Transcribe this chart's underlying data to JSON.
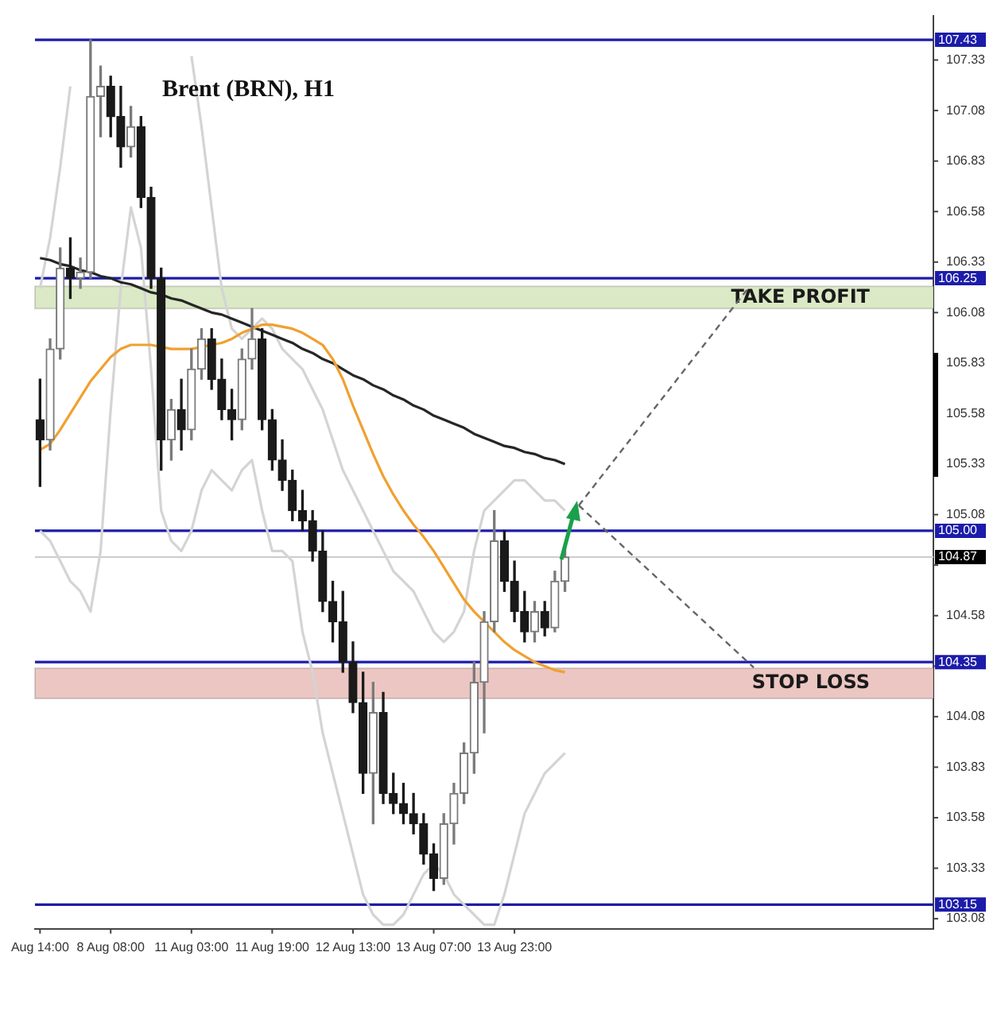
{
  "chart_data": {
    "type": "candlestick",
    "title": "Brent (BRN), H1",
    "colors": [
      "#1a1a1a",
      "#7a7a7a",
      "#7a7a7a",
      "#1a1a1a",
      "#7a7a7a",
      "#7a7a7a",
      "#7a7a7a",
      "#1a1a1a",
      "#1a1a1a",
      "#7a7a7a",
      "#1a1a1a",
      "#1a1a1a",
      "#1a1a1a",
      "#7a7a7a",
      "#1a1a1a",
      "#7a7a7a",
      "#7a7a7a",
      "#1a1a1a",
      "#1a1a1a",
      "#1a1a1a",
      "#7a7a7a",
      "#7a7a7a",
      "#1a1a1a",
      "#1a1a1a",
      "#1a1a1a",
      "#1a1a1a",
      "#1a1a1a",
      "#1a1a1a",
      "#1a1a1a",
      "#1a1a1a",
      "#1a1a1a",
      "#1a1a1a",
      "#1a1a1a",
      "#7a7a7a",
      "#1a1a1a",
      "#1a1a1a",
      "#1a1a1a",
      "#1a1a1a",
      "#1a1a1a",
      "#1a1a1a",
      "#7a7a7a",
      "#7a7a7a",
      "#7a7a7a",
      "#7a7a7a",
      "#7a7a7a",
      "#7a7a7a",
      "#1a1a1a",
      "#1a1a1a",
      "#1a1a1a",
      "#7a7a7a",
      "#1a1a1a",
      "#7a7a7a",
      "#7a7a7a",
      null,
      null,
      null,
      null,
      null,
      null,
      null,
      null,
      null,
      null,
      null,
      null,
      null,
      null,
      null,
      null,
      null,
      null,
      null,
      null,
      null,
      null,
      null,
      null,
      null,
      null,
      null,
      null,
      null,
      null,
      null,
      null,
      null,
      null,
      null,
      null
    ],
    "categories": [
      "Aug 14:00",
      null,
      null,
      null,
      null,
      null,
      null,
      "8 Aug 08:00",
      null,
      null,
      null,
      null,
      null,
      null,
      null,
      "11 Aug 03:00",
      null,
      null,
      null,
      null,
      null,
      null,
      null,
      "11 Aug 19:00",
      null,
      null,
      null,
      null,
      null,
      null,
      null,
      "12 Aug 13:00",
      null,
      null,
      null,
      null,
      null,
      null,
      null,
      "13 Aug 07:00",
      null,
      null,
      null,
      null,
      null,
      null,
      null,
      "13 Aug 23:00",
      null,
      null,
      null,
      null,
      null,
      null,
      null,
      null,
      null,
      null,
      null,
      null,
      null,
      null,
      null,
      null,
      null,
      null,
      null,
      null,
      null,
      null,
      null,
      null,
      null,
      null,
      null,
      null,
      null,
      null,
      null,
      null,
      null,
      null,
      null,
      null,
      null,
      null,
      null,
      null,
      null
    ],
    "ohlc": [
      [
        105.55,
        105.75,
        105.22,
        105.45
      ],
      [
        105.45,
        105.95,
        105.4,
        105.9
      ],
      [
        105.9,
        106.4,
        105.85,
        106.3
      ],
      [
        106.3,
        106.45,
        106.15,
        106.25
      ],
      [
        106.25,
        106.35,
        106.2,
        106.28
      ],
      [
        106.28,
        107.43,
        106.25,
        107.15
      ],
      [
        107.15,
        107.3,
        106.95,
        107.2
      ],
      [
        107.2,
        107.25,
        106.95,
        107.05
      ],
      [
        107.05,
        107.2,
        106.8,
        106.9
      ],
      [
        106.9,
        107.1,
        106.85,
        107.0
      ],
      [
        107.0,
        107.05,
        106.6,
        106.65
      ],
      [
        106.65,
        106.7,
        106.2,
        106.25
      ],
      [
        106.25,
        106.3,
        105.3,
        105.45
      ],
      [
        105.45,
        105.65,
        105.35,
        105.6
      ],
      [
        105.6,
        105.75,
        105.4,
        105.5
      ],
      [
        105.5,
        105.9,
        105.45,
        105.8
      ],
      [
        105.8,
        106.0,
        105.75,
        105.95
      ],
      [
        105.95,
        106.0,
        105.7,
        105.75
      ],
      [
        105.75,
        105.85,
        105.55,
        105.6
      ],
      [
        105.6,
        105.7,
        105.45,
        105.55
      ],
      [
        105.55,
        105.9,
        105.5,
        105.85
      ],
      [
        105.85,
        106.1,
        105.8,
        105.95
      ],
      [
        105.95,
        106.0,
        105.5,
        105.55
      ],
      [
        105.55,
        105.6,
        105.3,
        105.35
      ],
      [
        105.35,
        105.45,
        105.2,
        105.25
      ],
      [
        105.25,
        105.3,
        105.05,
        105.1
      ],
      [
        105.1,
        105.2,
        105.0,
        105.05
      ],
      [
        105.05,
        105.1,
        104.85,
        104.9
      ],
      [
        104.9,
        105.0,
        104.6,
        104.65
      ],
      [
        104.65,
        104.75,
        104.45,
        104.55
      ],
      [
        104.55,
        104.7,
        104.3,
        104.35
      ],
      [
        104.35,
        104.45,
        104.1,
        104.15
      ],
      [
        104.15,
        104.3,
        103.7,
        103.8
      ],
      [
        103.8,
        104.25,
        103.55,
        104.1
      ],
      [
        104.1,
        104.2,
        103.65,
        103.7
      ],
      [
        103.7,
        103.8,
        103.6,
        103.65
      ],
      [
        103.65,
        103.75,
        103.55,
        103.6
      ],
      [
        103.6,
        103.7,
        103.5,
        103.55
      ],
      [
        103.55,
        103.6,
        103.35,
        103.4
      ],
      [
        103.4,
        103.45,
        103.22,
        103.28
      ],
      [
        103.28,
        103.6,
        103.25,
        103.55
      ],
      [
        103.55,
        103.75,
        103.45,
        103.7
      ],
      [
        103.7,
        103.95,
        103.65,
        103.9
      ],
      [
        103.9,
        104.35,
        103.8,
        104.25
      ],
      [
        104.25,
        104.6,
        104.0,
        104.55
      ],
      [
        104.55,
        105.1,
        104.5,
        104.95
      ],
      [
        104.95,
        105.0,
        104.7,
        104.75
      ],
      [
        104.75,
        104.85,
        104.55,
        104.6
      ],
      [
        104.6,
        104.7,
        104.45,
        104.5
      ],
      [
        104.5,
        104.65,
        104.45,
        104.6
      ],
      [
        104.6,
        104.65,
        104.48,
        104.52
      ],
      [
        104.52,
        104.8,
        104.5,
        104.75
      ],
      [
        104.75,
        104.92,
        104.7,
        104.87
      ],
      null,
      null,
      null,
      null,
      null,
      null,
      null,
      null,
      null,
      null,
      null,
      null,
      null,
      null,
      null,
      null,
      null,
      null,
      null,
      null,
      null,
      null,
      null,
      null,
      null,
      null,
      null,
      null,
      null,
      null,
      null,
      null,
      null,
      null,
      null,
      null
    ],
    "series": [
      {
        "type": "line",
        "color": "#f0a030",
        "values": [
          105.4,
          105.43,
          105.5,
          105.58,
          105.66,
          105.74,
          105.8,
          105.86,
          105.9,
          105.92,
          105.92,
          105.92,
          105.91,
          105.9,
          105.9,
          105.9,
          105.91,
          105.92,
          105.93,
          105.95,
          105.98,
          106.0,
          106.02,
          106.02,
          106.01,
          106.0,
          105.98,
          105.95,
          105.92,
          105.85,
          105.75,
          105.62,
          105.5,
          105.38,
          105.27,
          105.18,
          105.1,
          105.03,
          104.97,
          104.9,
          104.82,
          104.74,
          104.66,
          104.6,
          104.55,
          104.5,
          104.45,
          104.41,
          104.38,
          104.35,
          104.33,
          104.31,
          104.3,
          null,
          null,
          null,
          null,
          null,
          null,
          null,
          null,
          null,
          null,
          null,
          null,
          null,
          null,
          null,
          null,
          null,
          null,
          null,
          null,
          null,
          null,
          null,
          null,
          null,
          null,
          null,
          null,
          null,
          null,
          null,
          null,
          null,
          null,
          null,
          null
        ]
      },
      {
        "type": "line",
        "color": "#262626",
        "values": [
          106.35,
          106.34,
          106.32,
          106.31,
          106.29,
          106.28,
          106.26,
          106.25,
          106.23,
          106.22,
          106.2,
          106.18,
          106.17,
          106.15,
          106.14,
          106.12,
          106.1,
          106.08,
          106.07,
          106.05,
          106.03,
          106.01,
          105.99,
          105.97,
          105.95,
          105.93,
          105.9,
          105.88,
          105.85,
          105.83,
          105.8,
          105.77,
          105.75,
          105.72,
          105.7,
          105.67,
          105.65,
          105.62,
          105.6,
          105.57,
          105.55,
          105.53,
          105.51,
          105.48,
          105.46,
          105.44,
          105.42,
          105.41,
          105.39,
          105.38,
          105.36,
          105.35,
          105.33,
          null,
          null,
          null,
          null,
          null,
          null,
          null,
          null,
          null,
          null,
          null,
          null,
          null,
          null,
          null,
          null,
          null,
          null,
          null,
          null,
          null,
          null,
          null,
          null,
          null,
          null,
          null,
          null,
          null,
          null,
          null,
          null,
          null,
          null,
          null,
          null
        ]
      },
      {
        "type": "line",
        "color": "#d4d4d4",
        "values": [
          106.2,
          106.45,
          106.8,
          107.2,
          null,
          null,
          null,
          null,
          null,
          null,
          null,
          null,
          null,
          null,
          null,
          107.35,
          107.0,
          106.6,
          106.2,
          106.0,
          105.95,
          106.0,
          106.05,
          106.0,
          105.9,
          105.85,
          105.8,
          105.7,
          105.6,
          105.45,
          105.3,
          105.2,
          105.1,
          105.0,
          104.9,
          104.8,
          104.75,
          104.7,
          104.6,
          104.5,
          104.45,
          104.5,
          104.6,
          104.9,
          105.1,
          105.15,
          105.2,
          105.25,
          105.25,
          105.2,
          105.15,
          105.15,
          105.1,
          null,
          null,
          null,
          null,
          null,
          null,
          null,
          null,
          null,
          null,
          null,
          null,
          null,
          null,
          null,
          null,
          null,
          null,
          null,
          null,
          null,
          null,
          null,
          null,
          null,
          null,
          null,
          null,
          null,
          null,
          null,
          null,
          null,
          null,
          null,
          null
        ]
      },
      {
        "type": "line",
        "color": "#d4d4d4",
        "values": [
          105.0,
          104.95,
          104.85,
          104.75,
          104.7,
          104.6,
          104.9,
          105.6,
          106.2,
          106.6,
          106.4,
          105.8,
          105.1,
          104.95,
          104.9,
          105.0,
          105.2,
          105.3,
          105.25,
          105.2,
          105.3,
          105.35,
          105.1,
          104.9,
          104.9,
          104.85,
          104.5,
          104.3,
          104.0,
          103.8,
          103.6,
          103.4,
          103.2,
          103.1,
          103.05,
          103.05,
          103.1,
          103.2,
          103.3,
          103.35,
          103.3,
          103.2,
          103.15,
          103.1,
          103.05,
          103.05,
          103.2,
          103.4,
          103.6,
          103.7,
          103.8,
          103.85,
          103.9,
          null,
          null,
          null,
          null,
          null,
          null,
          null,
          null,
          null,
          null,
          null,
          null,
          null,
          null,
          null,
          null,
          null,
          null,
          null,
          null,
          null,
          null,
          null,
          null,
          null,
          null,
          null,
          null,
          null,
          null,
          null,
          null,
          null,
          null,
          null,
          null
        ]
      }
    ],
    "ylim": [
      103.03,
      107.55
    ],
    "yticks": [
      103.08,
      103.33,
      103.58,
      103.83,
      104.08,
      {
        "value": 104.33,
        "label": null
      },
      104.58,
      {
        "value": 104.83,
        "label": null
      },
      105.08,
      105.33,
      105.58,
      105.83,
      106.08,
      106.33,
      106.58,
      106.83,
      107.08,
      107.33
    ],
    "ref_lines": [
      {
        "axis": "y",
        "value": 107.43,
        "label": "107.43",
        "color": "#1c1caa"
      },
      {
        "axis": "y",
        "value": 106.25,
        "label": "106.25",
        "color": "#1c1caa"
      },
      {
        "axis": "y",
        "value": 105.0,
        "label": "105.00",
        "color": "#1c1caa"
      },
      {
        "axis": "y",
        "value": 104.87,
        "label": "104.87",
        "color": "#cccccc"
      },
      {
        "axis": "y",
        "value": 104.35,
        "label": "104.35",
        "color": "#1c1caa"
      },
      {
        "axis": "y",
        "value": 103.15,
        "label": "103.15",
        "color": "#1c1caa"
      }
    ],
    "bands": [
      {
        "axis": "y",
        "from": 106.1,
        "to": 106.21,
        "label": "TAKE PROFIT",
        "color": "#dbe9c6"
      },
      {
        "axis": "y",
        "from": 104.17,
        "to": 104.32,
        "label": "STOP LOSS",
        "color": "#ecc6c2"
      }
    ]
  }
}
